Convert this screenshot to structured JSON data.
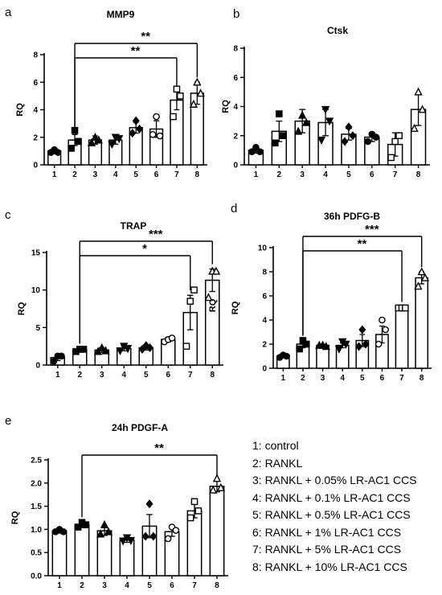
{
  "chart_data": [
    {
      "panel": "a",
      "title": "MMP9",
      "type": "bar",
      "ylabel": "RQ",
      "categories": [
        "1",
        "2",
        "3",
        "4",
        "5",
        "6",
        "7",
        "8"
      ],
      "values": [
        1.0,
        1.8,
        1.8,
        1.8,
        2.7,
        2.6,
        4.7,
        5.2
      ],
      "errors": [
        0.2,
        0.4,
        0.3,
        0.3,
        0.4,
        0.6,
        0.7,
        0.8
      ],
      "markers": [
        "circle",
        "square",
        "triangle",
        "down-triangle",
        "diamond",
        "circle",
        "square",
        "triangle"
      ],
      "points": [
        [
          0.9,
          1.1,
          0.9
        ],
        [
          1.2,
          2.5,
          1.7
        ],
        [
          1.6,
          2.0,
          1.8
        ],
        [
          1.5,
          2.0,
          1.9
        ],
        [
          2.3,
          3.2,
          2.6
        ],
        [
          2.2,
          3.5,
          2.1
        ],
        [
          3.5,
          5.5,
          5.0
        ],
        [
          4.4,
          6.0,
          5.2
        ]
      ],
      "ylim": [
        0,
        8
      ],
      "yticks": [
        0,
        2,
        4,
        6,
        8
      ],
      "significance": [
        {
          "from": 2,
          "to": 8,
          "label": "**"
        },
        {
          "from": 2,
          "to": 7,
          "label": "**"
        }
      ]
    },
    {
      "panel": "b",
      "title": "Ctsk",
      "type": "bar",
      "ylabel": "RQ",
      "categories": [
        "1",
        "2",
        "3",
        "4",
        "5",
        "6",
        "7",
        "8"
      ],
      "values": [
        1.0,
        2.3,
        3.0,
        2.9,
        2.1,
        1.9,
        1.4,
        3.8
      ],
      "errors": [
        0.2,
        0.7,
        0.8,
        0.9,
        0.4,
        0.3,
        0.8,
        1.1
      ],
      "markers": [
        "circle",
        "square",
        "triangle",
        "down-triangle",
        "diamond",
        "circle",
        "square",
        "triangle"
      ],
      "points": [
        [
          0.9,
          1.2,
          0.9
        ],
        [
          1.5,
          3.5,
          2.0
        ],
        [
          2.3,
          3.4,
          2.9
        ],
        [
          1.7,
          3.8,
          3.0
        ],
        [
          1.6,
          2.6,
          2.0
        ],
        [
          1.6,
          2.1,
          1.9
        ],
        [
          0.5,
          1.6,
          2.0
        ],
        [
          2.5,
          5.0,
          3.8
        ]
      ],
      "ylim": [
        0,
        8
      ],
      "yticks": [
        0,
        2,
        4,
        6,
        8
      ],
      "significance": []
    },
    {
      "panel": "c",
      "title": "TRAP",
      "type": "bar",
      "ylabel": "RQ",
      "categories": [
        "1",
        "2",
        "3",
        "4",
        "5",
        "6",
        "7",
        "8"
      ],
      "values": [
        1.0,
        2.0,
        2.0,
        2.2,
        2.3,
        3.4,
        7.0,
        11.3
      ],
      "errors": [
        0.4,
        0.2,
        0.3,
        0.3,
        0.3,
        0.3,
        2.3,
        1.5
      ],
      "markers": [
        "circle",
        "square",
        "triangle",
        "down-triangle",
        "diamond",
        "circle",
        "square",
        "triangle"
      ],
      "points": [
        [
          0.5,
          1.2,
          1.2
        ],
        [
          1.8,
          2.1,
          2.1
        ],
        [
          1.8,
          2.3,
          1.9
        ],
        [
          1.9,
          2.5,
          2.2
        ],
        [
          2.1,
          2.6,
          2.3
        ],
        [
          3.1,
          3.4,
          3.6
        ],
        [
          2.5,
          8.5,
          10.0
        ],
        [
          9.0,
          12.5,
          12.5
        ]
      ],
      "ylim": [
        0,
        15
      ],
      "yticks": [
        0,
        5,
        10,
        15
      ],
      "significance": [
        {
          "from": 2,
          "to": 8,
          "label": "***"
        },
        {
          "from": 2,
          "to": 7,
          "label": "*"
        }
      ]
    },
    {
      "panel": "d",
      "title": "36h PDFG-B",
      "type": "bar",
      "ylabel": "RQ",
      "categories": [
        "1",
        "2",
        "3",
        "4",
        "5",
        "6",
        "7",
        "8"
      ],
      "values": [
        1.0,
        2.0,
        1.9,
        1.9,
        2.3,
        2.8,
        5.0,
        7.5
      ],
      "errors": [
        0.1,
        0.3,
        0.1,
        0.2,
        0.5,
        0.7,
        0.1,
        0.5
      ],
      "markers": [
        "circle",
        "square",
        "triangle",
        "down-triangle",
        "diamond",
        "circle",
        "square",
        "triangle"
      ],
      "points": [
        [
          0.9,
          1.1,
          1.0
        ],
        [
          1.6,
          2.3,
          2.0
        ],
        [
          1.9,
          1.9,
          1.8
        ],
        [
          1.6,
          2.2,
          2.0
        ],
        [
          1.8,
          3.2,
          2.0
        ],
        [
          2.0,
          4.0,
          3.2
        ],
        [
          5.0,
          5.0,
          5.0
        ],
        [
          6.8,
          8.0,
          7.5
        ]
      ],
      "ylim": [
        0,
        10
      ],
      "yticks": [
        0,
        2,
        4,
        6,
        8,
        10
      ],
      "significance": [
        {
          "from": 2,
          "to": 8,
          "label": "***"
        },
        {
          "from": 2,
          "to": 7,
          "label": "**"
        }
      ]
    },
    {
      "panel": "e",
      "title": "24h PDGF-A",
      "type": "bar",
      "ylabel": "RQ",
      "categories": [
        "1",
        "2",
        "3",
        "4",
        "5",
        "6",
        "7",
        "8"
      ],
      "values": [
        0.97,
        1.1,
        0.97,
        0.77,
        1.07,
        0.95,
        1.4,
        1.93
      ],
      "errors": [
        0.05,
        0.06,
        0.1,
        0.05,
        0.25,
        0.1,
        0.15,
        0.12
      ],
      "markers": [
        "circle",
        "square",
        "triangle",
        "down-triangle",
        "diamond",
        "circle",
        "square",
        "triangle"
      ],
      "points": [
        [
          0.95,
          1.0,
          0.95
        ],
        [
          1.05,
          1.15,
          1.1
        ],
        [
          0.9,
          1.1,
          0.95
        ],
        [
          0.75,
          0.82,
          0.76
        ],
        [
          0.85,
          1.55,
          0.85
        ],
        [
          0.8,
          1.05,
          0.98
        ],
        [
          1.25,
          1.6,
          1.4
        ],
        [
          1.85,
          2.1,
          1.9
        ]
      ],
      "ylim": [
        0,
        2.5
      ],
      "yticks": [
        0.0,
        0.5,
        1.0,
        1.5,
        2.0,
        2.5
      ],
      "yticklabels": [
        "0.0",
        "0.5",
        "1.0",
        "1.5",
        "2.0",
        "2.5"
      ],
      "significance": [
        {
          "from": 2,
          "to": 8,
          "label": "**"
        }
      ]
    }
  ],
  "stray_label": "RQ",
  "legend": [
    "1: control",
    "2: RANKL",
    "3: RANKL + 0.05% LR-AC1 CCS",
    "4: RANKL + 0.1% LR-AC1 CCS",
    "5: RANKL + 0.5% LR-AC1 CCS",
    "6: RANKL + 1% LR-AC1 CCS",
    "7: RANKL + 5% LR-AC1 CCS",
    "8: RANKL + 10% LR-AC1 CCS"
  ]
}
